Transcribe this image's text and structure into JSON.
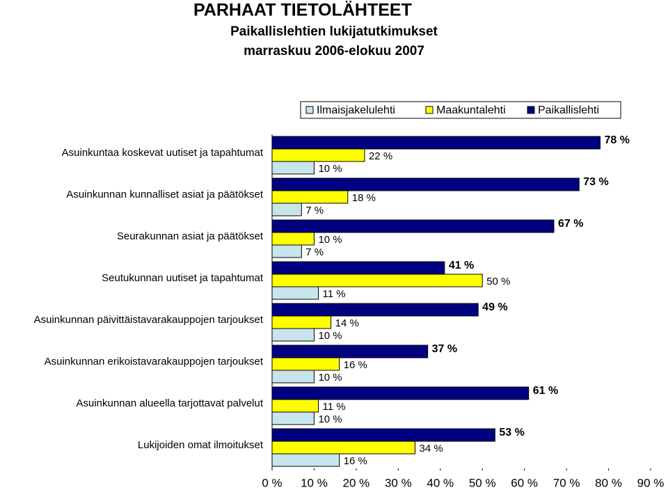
{
  "chart_data": {
    "type": "bar",
    "orientation": "horizontal",
    "title": "PARHAAT TIETOLÄHTEET",
    "subtitles": [
      "Paikallislehtien lukijatutkimukset",
      "marraskuu 2006-elokuu 2007"
    ],
    "categories": [
      "Asuinkuntaa koskevat uutiset ja tapahtumat",
      "Asuinkunnan kunnalliset asiat ja päätökset",
      "Seurakunnan asiat ja päätökset",
      "Seutukunnan uutiset ja tapahtumat",
      "Asuinkunnan päivittäistavarakauppojen tarjoukset",
      "Asuinkunnan erikoistavarakauppojen tarjoukset",
      "Asuinkunnan alueella tarjottavat palvelut",
      "Lukijoiden omat ilmoitukset"
    ],
    "series": [
      {
        "name": "Ilmaisjakelulehti",
        "color": "#c8e4ec",
        "values": [
          10,
          7,
          7,
          11,
          10,
          10,
          10,
          16
        ],
        "value_labels": [
          "10 %",
          "7 %",
          "7 %",
          "11 %",
          "10 %",
          "10 %",
          "10 %",
          "16 %"
        ]
      },
      {
        "name": "Maakuntalehti",
        "color": "#ffff00",
        "values": [
          22,
          18,
          10,
          50,
          14,
          16,
          11,
          34
        ],
        "value_labels": [
          "22 %",
          "18 %",
          "10 %",
          "50 %",
          "14 %",
          "16 %",
          "11 %",
          "34 %"
        ]
      },
      {
        "name": "Paikallislehti",
        "color": "#000080",
        "values": [
          78,
          73,
          67,
          41,
          49,
          37,
          61,
          53
        ],
        "value_labels": [
          "78 %",
          "73 %",
          "67 %",
          "41 %",
          "49 %",
          "37 %",
          "61 %",
          "53 %"
        ]
      }
    ],
    "xlim": [
      0,
      90
    ],
    "xticks": [
      {
        "value": 0,
        "label": "0 %"
      },
      {
        "value": 10,
        "label": "10 %"
      },
      {
        "value": 20,
        "label": "20 %"
      },
      {
        "value": 30,
        "label": "30 %"
      },
      {
        "value": 40,
        "label": "40 %"
      },
      {
        "value": 50,
        "label": "50 %"
      },
      {
        "value": 60,
        "label": "60 %"
      },
      {
        "value": 70,
        "label": "70 %"
      },
      {
        "value": 80,
        "label": "80 %"
      },
      {
        "value": 90,
        "label": "90 %"
      }
    ],
    "legend": "top-right"
  }
}
